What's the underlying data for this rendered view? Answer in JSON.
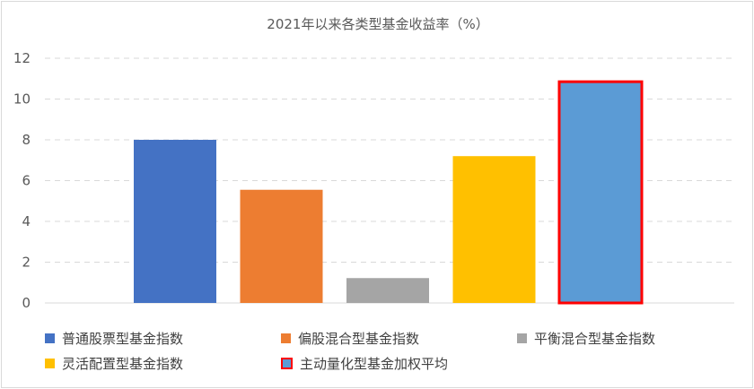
{
  "chart_data": {
    "type": "bar",
    "title": "2021年以来各类型基金收益率（%）",
    "categories": [
      "普通股票型基金指数",
      "偏股混合型基金指数",
      "平衡混合型基金指数",
      "灵活配置型基金指数",
      "主动量化型基金加权平均"
    ],
    "values": [
      8.0,
      5.55,
      1.22,
      7.2,
      10.85
    ],
    "colors": [
      "#4472C4",
      "#ED7D31",
      "#A5A5A5",
      "#FFC000",
      "#5B9BD5"
    ],
    "highlight": {
      "category": "主动量化型基金加权平均",
      "outline_color": "#FF0000"
    },
    "ylim": [
      0,
      12
    ],
    "yticks": [
      "0",
      "2",
      "4",
      "6",
      "8",
      "10",
      "12"
    ],
    "grid": true,
    "legend_position": "bottom",
    "xlabel": "",
    "ylabel": ""
  }
}
